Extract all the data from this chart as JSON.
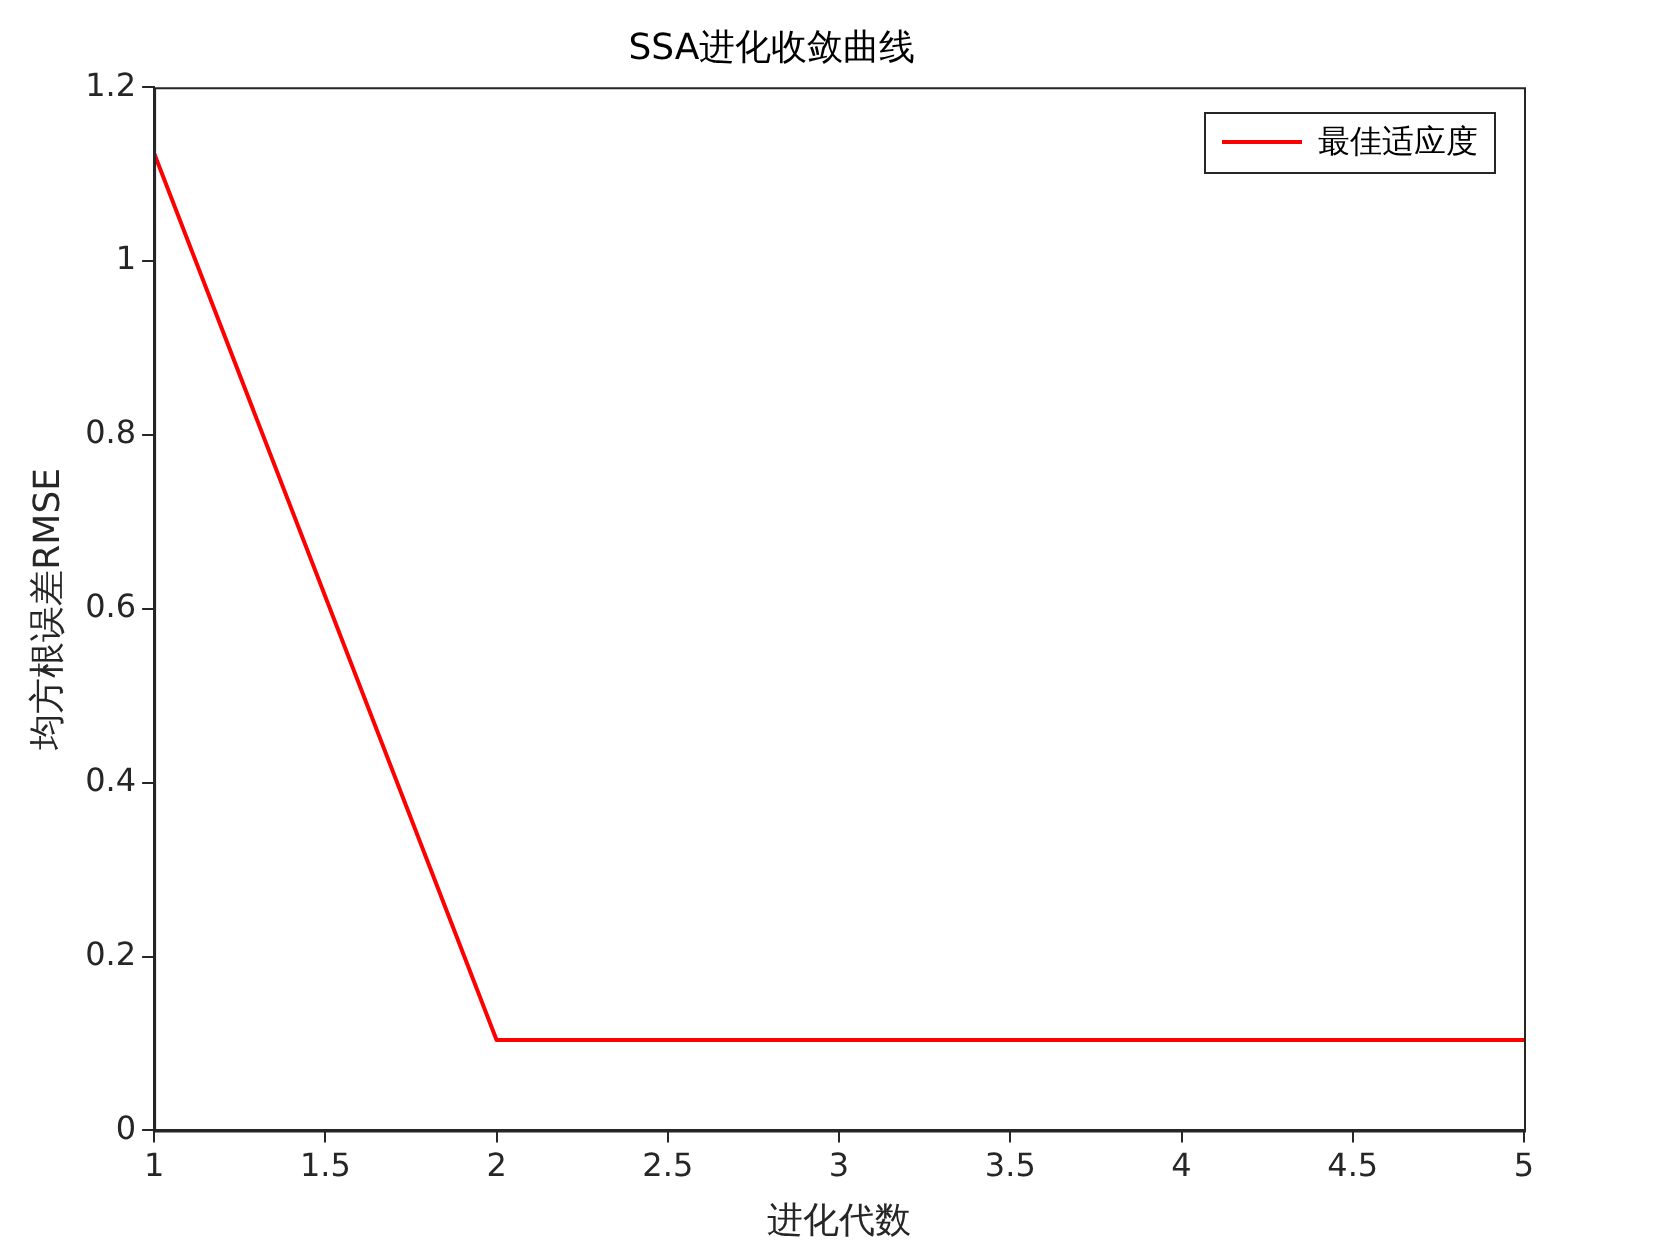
{
  "chart_data": {
    "type": "line",
    "title": "SSA进化收敛曲线",
    "xlabel": "进化代数",
    "ylabel": "均方根误差RMSE",
    "x": [
      1,
      2,
      3,
      4,
      5
    ],
    "series": [
      {
        "name": "最佳适应度",
        "color": "#ff0000",
        "values": [
          1.124,
          0.104,
          0.104,
          0.104,
          0.104
        ]
      }
    ],
    "xlim": [
      1,
      5
    ],
    "xticks": [
      1,
      1.5,
      2,
      2.5,
      3,
      3.5,
      4,
      4.5,
      5
    ],
    "ylim": [
      0,
      1.2
    ],
    "yticks": [
      0,
      0.2,
      0.4,
      0.6,
      0.8,
      1,
      1.2
    ],
    "grid": false,
    "legend": "top right",
    "marker": "none",
    "line_style": "solid"
  }
}
